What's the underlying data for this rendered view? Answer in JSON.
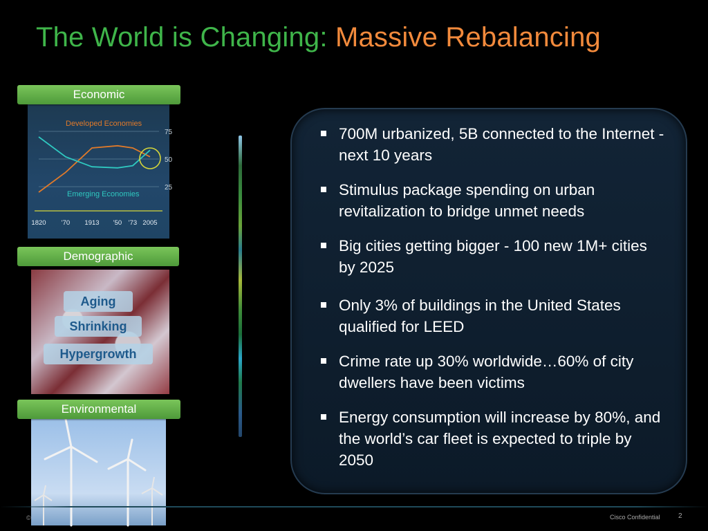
{
  "title": {
    "part1": "The World is Changing: ",
    "part2": "Massive Rebalancing"
  },
  "economic": {
    "label": "Economic",
    "chart": {
      "type": "line",
      "x_ticks": [
        "1820",
        "'70",
        "1913",
        "'50",
        "'73",
        "2005"
      ],
      "y_ticks": [
        "75",
        "50",
        "25"
      ],
      "series": [
        {
          "name": "Developed Economies",
          "color": "#e07a2a",
          "values": [
            20,
            38,
            60,
            62,
            60,
            52
          ]
        },
        {
          "name": "Emerging Economies",
          "color": "#2fc8c0",
          "values": [
            70,
            52,
            43,
            42,
            44,
            58
          ]
        }
      ]
    }
  },
  "demographic": {
    "label": "Demographic",
    "tags": [
      "Aging",
      "Shrinking",
      "Hypergrowth"
    ]
  },
  "environmental": {
    "label": "Environmental"
  },
  "bullets": [
    "700M urbanized, 5B connected to the Internet - next 10 years",
    "Stimulus package spending on urban revitalization to bridge unmet needs",
    "Big cities getting bigger - 100 new 1M+ cities by 2025",
    "Only 3% of buildings in the United States qualified for LEED",
    "Crime rate up 30% worldwide…60% of city dwellers have been victims",
    "Energy consumption will increase by 80%, and the world’s car fleet is expected to triple by 2050"
  ],
  "footer": {
    "left": "©",
    "confidential": "Cisco Confidential",
    "page": "2"
  },
  "colors": {
    "title_green": "#3fb54a",
    "title_orange": "#f28a3c",
    "label_green": "#5fae44"
  }
}
